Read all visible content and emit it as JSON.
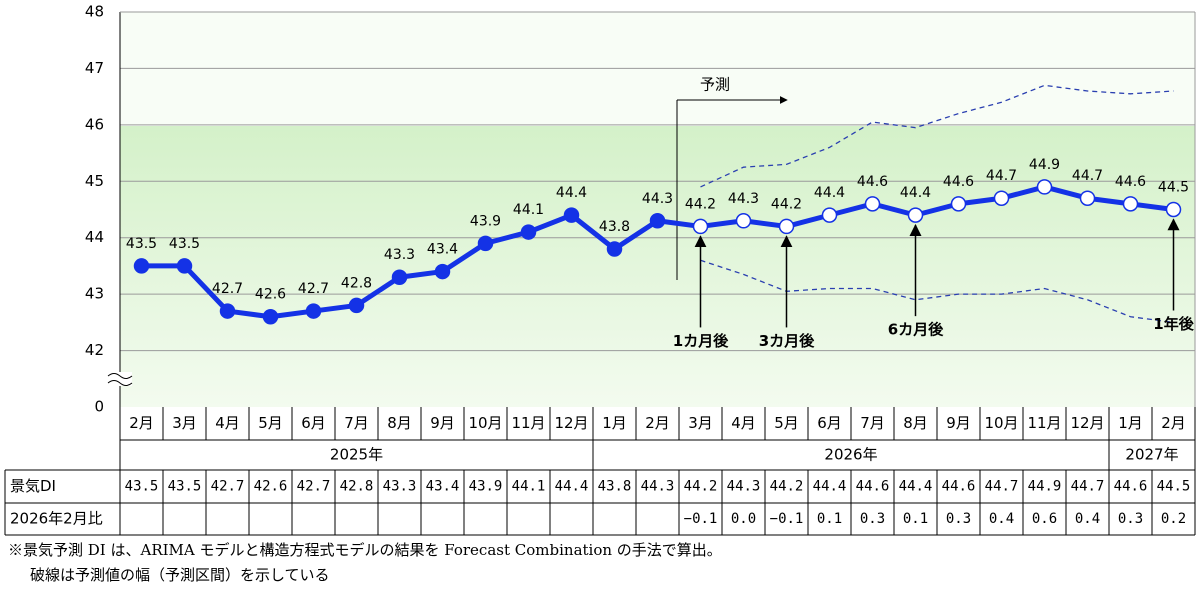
{
  "chart_data": {
    "type": "line",
    "categories": [
      "2月",
      "3月",
      "4月",
      "5月",
      "6月",
      "7月",
      "8月",
      "9月",
      "10月",
      "11月",
      "12月",
      "1月",
      "2月",
      "3月",
      "4月",
      "5月",
      "6月",
      "7月",
      "8月",
      "9月",
      "10月",
      "11月",
      "12月",
      "1月",
      "2月"
    ],
    "category_years": [
      "2025年",
      null,
      null,
      null,
      null,
      null,
      null,
      null,
      null,
      null,
      null,
      "2026年",
      null,
      null,
      null,
      null,
      null,
      null,
      null,
      null,
      null,
      null,
      null,
      "2027年",
      null
    ],
    "series": [
      {
        "name": "景気DI",
        "color": "#1432e6",
        "values": [
          43.5,
          43.5,
          42.7,
          42.6,
          42.7,
          42.8,
          43.3,
          43.4,
          43.9,
          44.1,
          44.4,
          43.8,
          44.3,
          44.2,
          44.3,
          44.2,
          44.4,
          44.6,
          44.4,
          44.6,
          44.7,
          44.9,
          44.7,
          44.6,
          44.5
        ]
      }
    ],
    "band": {
      "color": "#2a3fb0",
      "upper": [
        null,
        null,
        null,
        null,
        null,
        null,
        null,
        null,
        null,
        null,
        null,
        null,
        null,
        44.9,
        45.25,
        45.3,
        45.6,
        46.05,
        45.95,
        46.2,
        46.4,
        46.7,
        46.6,
        46.55,
        46.6
      ],
      "lower": [
        null,
        null,
        null,
        null,
        null,
        null,
        null,
        null,
        null,
        null,
        null,
        null,
        null,
        43.6,
        43.35,
        43.05,
        43.1,
        43.1,
        42.9,
        43.0,
        43.0,
        43.1,
        42.9,
        42.6,
        42.5
      ]
    },
    "ylim": [
      41,
      48
    ],
    "yticks": [
      42,
      43,
      44,
      45,
      46,
      47,
      48
    ],
    "y_floor_tick": 0,
    "y_axis_break": true,
    "grid": true,
    "forecast_label": "予測",
    "horizon_labels": [
      null,
      null,
      null,
      null,
      null,
      null,
      null,
      null,
      null,
      null,
      null,
      null,
      null,
      "1カ月後",
      null,
      "3カ月後",
      null,
      null,
      "6カ月後",
      null,
      null,
      null,
      null,
      null,
      "1年後"
    ],
    "table": {
      "row_labels": [
        "景気DI",
        "2026年2月比"
      ],
      "diff": [
        null,
        null,
        null,
        null,
        null,
        null,
        null,
        null,
        null,
        null,
        null,
        null,
        null,
        "−0.1",
        "0.0",
        "−0.1",
        "0.1",
        "0.3",
        "0.1",
        "0.3",
        "0.4",
        "0.6",
        "0.4",
        "0.3",
        "0.2"
      ]
    },
    "notes": [
      "※景気予測 DI は、ARIMA モデルと構造方程式モデルの結果を Forecast Combination の手法で算出。",
      "破線は予測値の幅（予測区間）を示している"
    ]
  }
}
